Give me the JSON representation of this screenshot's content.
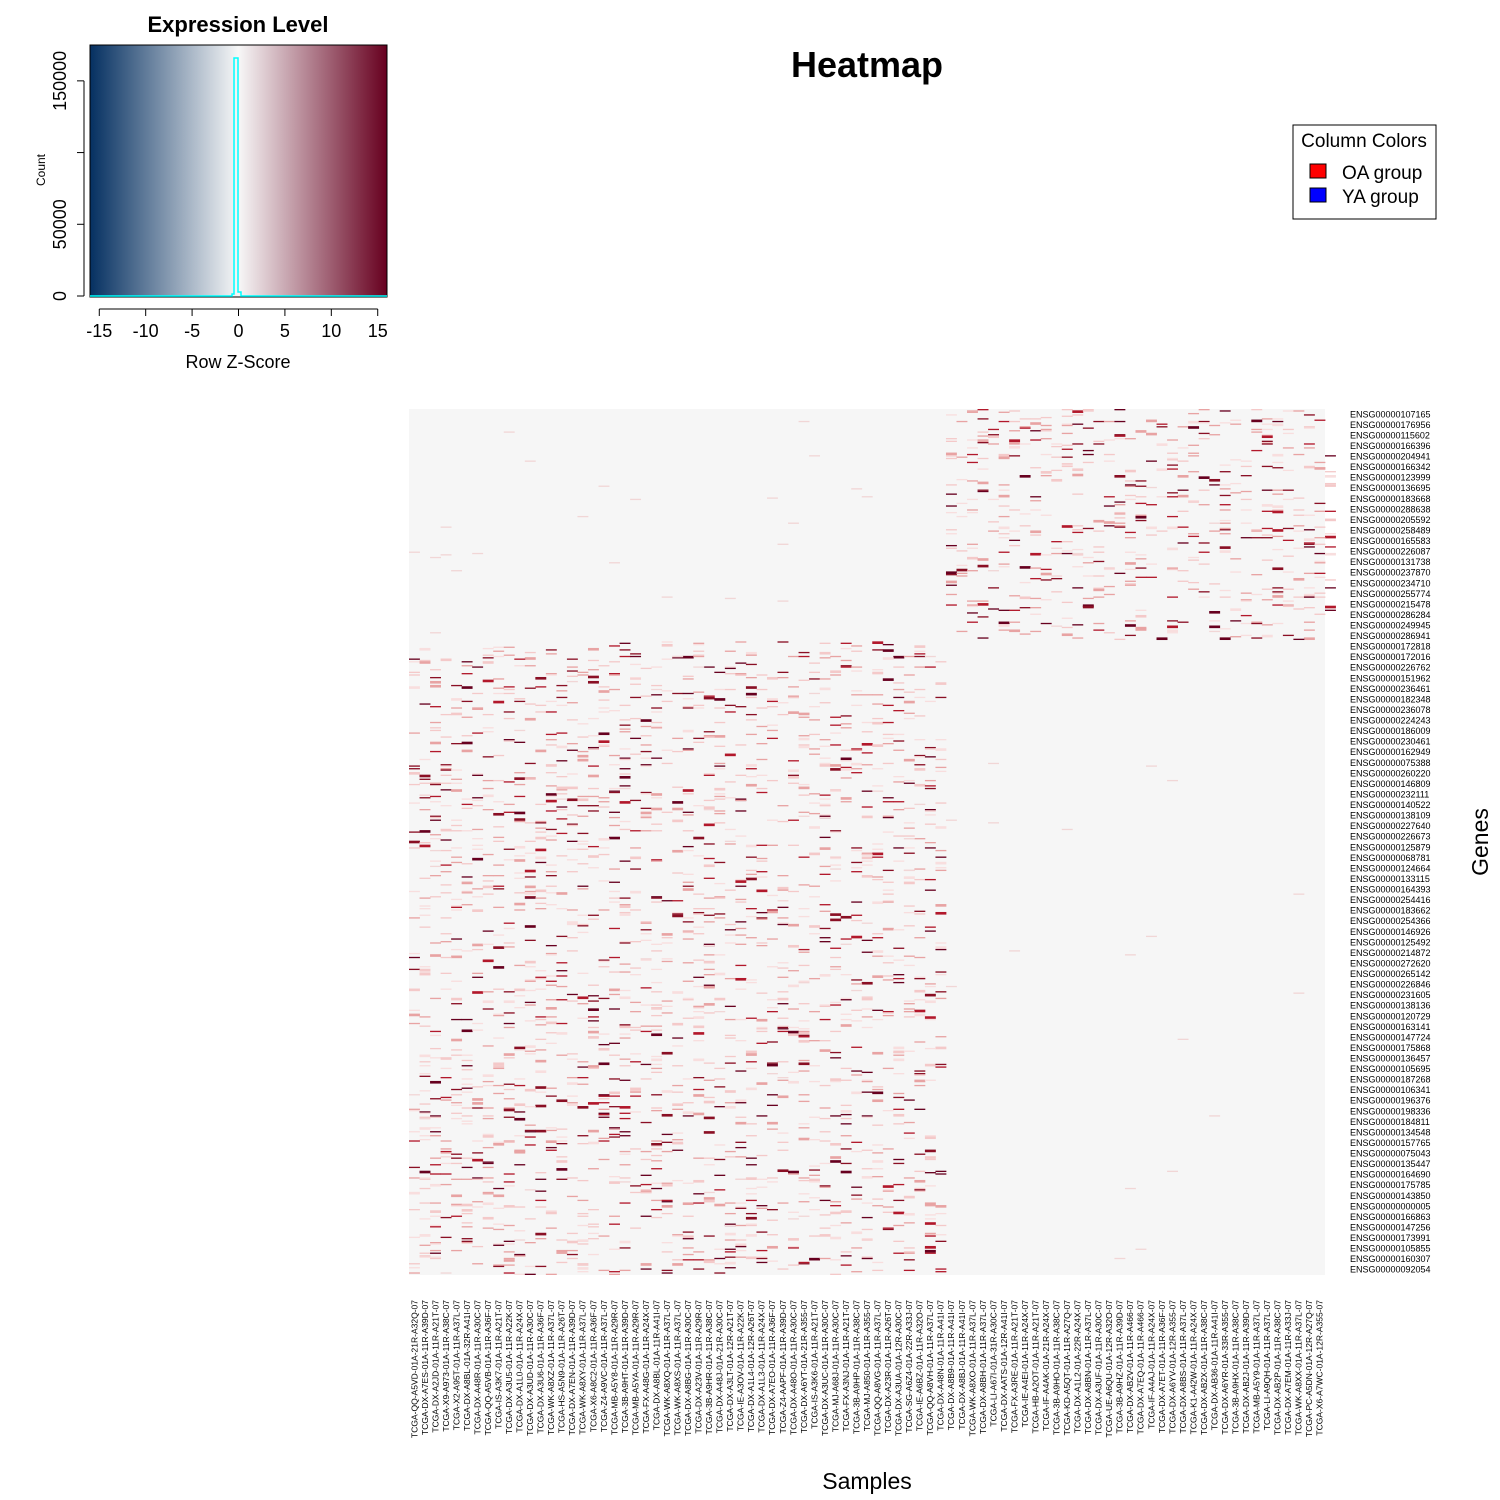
{
  "title": "Heatmap",
  "x_label": "Samples",
  "y_label": "Genes",
  "color_key": {
    "title": "Expression Level",
    "x_label": "Row Z-Score",
    "y_label": "Count",
    "x_ticks": [
      "-15",
      "-10",
      "-5",
      "0",
      "5",
      "10",
      "15"
    ],
    "y_ticks": [
      "0",
      "50000",
      "150000"
    ],
    "low_color": "#053061",
    "mid_color": "#f7f7f7",
    "high_color": "#67001f",
    "histogram_color": "#00ffff"
  },
  "legend": {
    "title": "Column Colors",
    "items": [
      {
        "label": "OA group",
        "color": "#ff0000"
      },
      {
        "label": "YA group",
        "color": "#0000ff"
      }
    ]
  },
  "chart_data": {
    "type": "heatmap",
    "title": "Heatmap",
    "xlabel": "Samples",
    "ylabel": "Genes",
    "color_scale": {
      "label": "Row Z-Score",
      "range": [
        -16,
        16
      ]
    },
    "histogram": {
      "ylabel": "Count",
      "peak_z": 0,
      "peak_count": 175000,
      "ylim": [
        0,
        175000
      ]
    },
    "legend_placement": "top-right",
    "row_labels": [
      "ENSG00000107165",
      "ENSG00000176956",
      "ENSG00000115602",
      "ENSG00000166396",
      "ENSG00000204941",
      "ENSG00000166342",
      "ENSG00000123999",
      "ENSG00000136695",
      "ENSG00000183668",
      "ENSG00000288638",
      "ENSG00000205592",
      "ENSG00000258489",
      "ENSG00000165583",
      "ENSG00000226087",
      "ENSG00000131738",
      "ENSG00000237870",
      "ENSG00000234710",
      "ENSG00000255774",
      "ENSG00000215478",
      "ENSG00000286284",
      "ENSG00000249945",
      "ENSG00000286941",
      "ENSG00000172818",
      "ENSG00000172016",
      "ENSG00000226762",
      "ENSG00000151962",
      "ENSG00000236461",
      "ENSG00000182348",
      "ENSG00000236078",
      "ENSG00000224243",
      "ENSG00000186009",
      "ENSG00000230461",
      "ENSG00000162949",
      "ENSG00000075388",
      "ENSG00000260220",
      "ENSG00000146809",
      "ENSG00000232111",
      "ENSG00000140522",
      "ENSG00000138109",
      "ENSG00000227640",
      "ENSG00000226673",
      "ENSG00000125879",
      "ENSG00000068781",
      "ENSG00000124664",
      "ENSG00000133115",
      "ENSG00000164393",
      "ENSG00000254416",
      "ENSG00000183662",
      "ENSG00000254366",
      "ENSG00000146926",
      "ENSG00000125492",
      "ENSG00000214872",
      "ENSG00000272620",
      "ENSG00000265142",
      "ENSG00000226846",
      "ENSG00000231605",
      "ENSG00000138136",
      "ENSG00000120729",
      "ENSG00000163141",
      "ENSG00000147724",
      "ENSG00000175868",
      "ENSG00000136457",
      "ENSG00000105695",
      "ENSG00000187268",
      "ENSG00000106341",
      "ENSG00000196376",
      "ENSG00000198336",
      "ENSG00000184811",
      "ENSG00000134548",
      "ENSG00000157765",
      "ENSG00000075043",
      "ENSG00000135447",
      "ENSG00000164690",
      "ENSG00000175785",
      "ENSG00000143850",
      "ENSG00000000005",
      "ENSG00000166863",
      "ENSG00000147256",
      "ENSG00000173991",
      "ENSG00000105855",
      "ENSG00000160307",
      "ENSG00000092054"
    ],
    "column_labels": [
      "TCGA-QQ-A5VD-01A-21R-A32Q-07",
      "TCGA-DX-A7ES-01A-11R-A39D-07",
      "TCGA-DX-A2JD-01A-11R-A21T-07",
      "TCGA-X9-A973-01A-11R-A38C-07",
      "TCGA-X2-A95T-01A-11R-A37L-07",
      "TCGA-DX-A8BL-01A-32R-A41I-07",
      "TCGA-DX-A48R-01A-11R-A30C-07",
      "TCGA-QQ-A5VB-01A-11R-A36F-07",
      "TCGA-IS-A3K7-01A-11R-A21T-07",
      "TCGA-DX-A3U5-01A-11R-A22K-07",
      "TCGA-DX-A1L0-01A-11R-A24X-07",
      "TCGA-DX-A3UD-01A-11R-A30C-07",
      "TCGA-DX-A3U6-01A-11R-A36F-07",
      "TCGA-WK-A8XZ-01A-11R-A37L-07",
      "TCGA-HS-A5N9-01A-11R-A26T-07",
      "TCGA-DX-A7EN-01A-11R-A39D-07",
      "TCGA-WK-A8XY-01A-11R-A37L-07",
      "TCGA-X6-A8C2-01A-11R-A36F-07",
      "TCGA-Z4-A9VC-01A-11R-A37L-07",
      "TCGA-MB-A5Y8-01A-11R-A29R-07",
      "TCGA-3B-A9HT-01A-11R-A39D-07",
      "TCGA-MB-A5YA-01A-11R-A29R-07",
      "TCGA-FX-A48G-01A-11R-A24X-07",
      "TCGA-DX-A8BL-01A-11R-A41I-07",
      "TCGA-WK-A8XQ-01A-11R-A37L-07",
      "TCGA-WK-A8XS-01A-11R-A37L-07",
      "TCGA-DX-A8BG-01A-11R-A30C-07",
      "TCGA-DX-A23V-01A-11R-A29R-07",
      "TCGA-3B-A9HR-01A-11R-A38C-07",
      "TCGA-DX-A48J-01A-21R-A30C-07",
      "TCGA-DX-A3LT-01A-12R-A21T-07",
      "TCGA-IE-A3OV-01A-11R-A22K-07",
      "TCGA-DX-A1L4-01A-12R-A26T-07",
      "TCGA-DX-A1L3-01A-11R-A24X-07",
      "TCGA-DX-A7EO-01A-11R-A36F-07",
      "TCGA-Z4-AAPF-01A-11R-A39D-07",
      "TCGA-DX-A48O-01A-11R-A30C-07",
      "TCGA-DX-A6YT-01A-21R-A355-07",
      "TCGA-IS-A3K6-01A-11R-A21T-07",
      "TCGA-DX-A3UC-01A-11R-A30C-07",
      "TCGA-MJ-A68J-01A-11R-A30C-07",
      "TCGA-FX-A3NJ-01A-11R-A21T-07",
      "TCGA-3B-A9HP-01A-11R-A38C-07",
      "TCGA-MJ-A850-01A-11R-A355-07",
      "TCGA-QQ-A8VG-01A-11R-A37L-07",
      "TCGA-DX-A23R-01A-11R-A26T-07",
      "TCGA-DX-A3UA-01A-12R-A30C-07",
      "TCGA-SG-A6Z4-01A-22R-A33J-07",
      "TCGA-IE-A6BZ-01A-11R-A32O-07",
      "TCGA-QQ-A8VH-01A-11R-A37L-07",
      "TCGA-DX-A48N-01A-11R-A41I-07",
      "TCGA-DX-A8B9-01A-11R-A41I-07",
      "TCGA-DX-A8BJ-01A-11R-A41I-07",
      "TCGA-WK-A8XO-01A-11R-A37L-07",
      "TCGA-DX-A8BH-01A-11R-A37L-07",
      "TCGA-LI-A67I-01A-31R-A30C-07",
      "TCGA-DX-AATS-01A-12R-A41I-07",
      "TCGA-FX-A3RE-01A-11R-A21T-07",
      "TCGA-IE-A4EI-01A-11R-A24X-07",
      "TCGA-HB-A2OT-01A-11R-A21T-07",
      "TCGA-IF-A4AK-01A-21R-A24X-07",
      "TCGA-3B-A9HO-01A-11R-A38C-07",
      "TCGA-KD-A5QT-01A-11R-A27Q-07",
      "TCGA-DX-A1L2-01A-22R-A24X-07",
      "TCGA-DX-A8BN-01A-11R-A37L-07",
      "TCGA-DX-A3UF-01A-11R-A30C-07",
      "TCGA-UE-A6QU-01A-12R-A32O-07",
      "TCGA-3B-A9HZ-01A-11R-A39D-07",
      "TCGA-DX-AB2V-01A-11R-A466-07",
      "TCGA-DX-A7EQ-01A-11R-A466-07",
      "TCGA-IF-A4AJ-01A-11R-A24X-07",
      "TCGA-DX-A7ET-01A-11R-A36F-07",
      "TCGA-DX-A6YV-01A-12R-A355-07",
      "TCGA-DX-A8BS-01A-11R-A37L-07",
      "TCGA-K1-A42W-01A-11R-A24X-07",
      "TCGA-DX-AB2X-01A-11R-A38C-07",
      "TCGA-DX-AB36-01A-11R-A41I-07",
      "TCGA-DX-A6YR-01A-33R-A355-07",
      "TCGA-3B-A9HX-01A-11R-A38C-07",
      "TCGA-DX-AB2J-01A-11R-A39D-07",
      "TCGA-MB-A5Y9-01A-11R-A37L-07",
      "TCGA-LI-A9QH-01A-11R-A37L-07",
      "TCGA-DX-AB2P-01A-11R-A38C-07",
      "TCGA-DX-A7EM-01A-11R-A33J-07",
      "TCGA-WK-A8XX-01A-11R-A37L-07",
      "TCGA-PC-A5DN-01A-12R-A27Q-07",
      "TCGA-X6-A7WC-01A-12R-A355-07"
    ],
    "groups": [
      {
        "name": "OA group",
        "color": "#ff0000"
      },
      {
        "name": "YA group",
        "color": "#0000ff"
      }
    ],
    "block_structure": [
      {
        "rows": [
          0,
          21
        ],
        "columns": [
          51,
          87
        ],
        "pattern": "sparse high z-scores"
      },
      {
        "rows": [
          22,
          81
        ],
        "columns": [
          0,
          50
        ],
        "pattern": "sparse high z-scores"
      }
    ]
  }
}
